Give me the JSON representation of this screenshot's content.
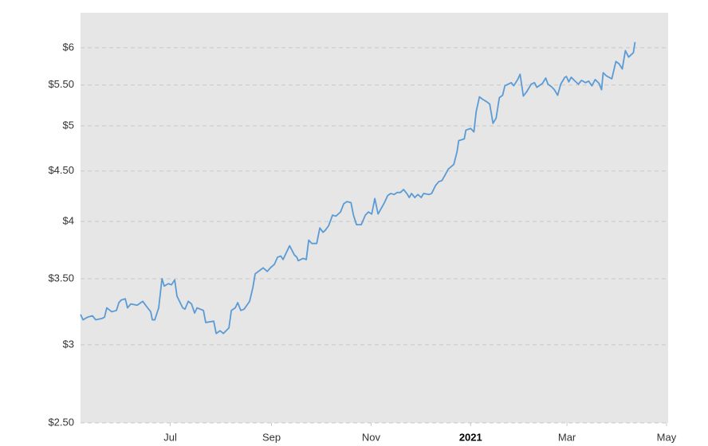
{
  "chart_data": {
    "type": "line",
    "ylog": true,
    "grid": true,
    "xlim": [
      0,
      360
    ],
    "ylim": [
      2.5,
      6.51
    ],
    "xticks": [
      {
        "value": 55,
        "label": "Jul"
      },
      {
        "value": 117,
        "label": "Sep"
      },
      {
        "value": 178,
        "label": "Nov"
      },
      {
        "value": 239,
        "label": "2021",
        "bold": true
      },
      {
        "value": 298,
        "label": "Mar"
      },
      {
        "value": 359,
        "label": "May"
      }
    ],
    "yticks": [
      {
        "value": 2.5,
        "label": "$2.50"
      },
      {
        "value": 3,
        "label": "$3"
      },
      {
        "value": 3.5,
        "label": "$3.50"
      },
      {
        "value": 4,
        "label": "$4"
      },
      {
        "value": 4.5,
        "label": "$4.50"
      },
      {
        "value": 5,
        "label": "$5"
      },
      {
        "value": 5.5,
        "label": "$5.50"
      },
      {
        "value": 6,
        "label": "$6"
      }
    ],
    "series": [
      {
        "color": "#5b9bd5",
        "x": [
          0,
          1.5,
          4.4,
          7.3,
          9.3,
          13.2,
          14.7,
          16.1,
          19.1,
          22,
          23.5,
          24.9,
          27.4,
          28.8,
          30.8,
          34.7,
          38.1,
          41.1,
          43,
          44,
          45.5,
          47.9,
          49.9,
          51.3,
          53.8,
          55.7,
          57.7,
          59.1,
          62.6,
          64,
          66,
          68,
          69.9,
          71.4,
          75.3,
          76.7,
          81.6,
          83.1,
          85.5,
          87.5,
          90.9,
          92.4,
          94.8,
          96.3,
          98.2,
          100.2,
          103.6,
          105.6,
          107,
          110,
          111.9,
          114.4,
          116.3,
          118.8,
          120.7,
          122.7,
          124.1,
          126.1,
          128.1,
          131,
          132.5,
          133.4,
          136.4,
          138.3,
          139.8,
          141.7,
          144.7,
          146.6,
          148.6,
          150,
          152,
          154.4,
          156.4,
          159.3,
          161.3,
          163.2,
          165.7,
          167.2,
          169.1,
          172,
          174.5,
          176.4,
          178.4,
          180.3,
          182.3,
          186.2,
          188.2,
          190.1,
          192.1,
          194,
          196,
          197.9,
          199.9,
          201.4,
          202.8,
          204.8,
          206.7,
          208.7,
          210.2,
          213.6,
          215.1,
          217.5,
          219.5,
          221.4,
          223.4,
          225.3,
          228.7,
          230.7,
          231.7,
          235.1,
          236.1,
          239,
          241,
          242.4,
          244.4,
          246.3,
          248.8,
          250.7,
          252.7,
          254.6,
          256.6,
          258.6,
          260,
          262,
          263.9,
          265.4,
          267.8,
          269.3,
          271.3,
          273.2,
          276.1,
          278.1,
          279.6,
          283,
          285,
          286.4,
          288.4,
          290.3,
          292.3,
          294.2,
          296.7,
          297.7,
          299.1,
          300.6,
          302.5,
          305,
          306.9,
          309.4,
          311.3,
          313.3,
          315.3,
          317.7,
          319.2,
          320.2,
          322.1,
          325.5,
          328,
          329.9,
          331.9,
          333.8,
          335.8,
          338.7,
          339.7
        ],
        "values": [
          3.22,
          3.18,
          3.2,
          3.21,
          3.18,
          3.19,
          3.2,
          3.27,
          3.24,
          3.25,
          3.31,
          3.33,
          3.34,
          3.27,
          3.3,
          3.29,
          3.32,
          3.27,
          3.24,
          3.18,
          3.18,
          3.27,
          3.5,
          3.44,
          3.46,
          3.45,
          3.49,
          3.36,
          3.27,
          3.26,
          3.32,
          3.3,
          3.23,
          3.27,
          3.25,
          3.16,
          3.17,
          3.08,
          3.1,
          3.08,
          3.12,
          3.25,
          3.27,
          3.31,
          3.25,
          3.26,
          3.32,
          3.43,
          3.54,
          3.57,
          3.59,
          3.56,
          3.59,
          3.62,
          3.68,
          3.69,
          3.66,
          3.72,
          3.78,
          3.7,
          3.68,
          3.65,
          3.67,
          3.66,
          3.83,
          3.8,
          3.8,
          3.94,
          3.9,
          3.92,
          3.96,
          4.06,
          4.05,
          4.09,
          4.17,
          4.19,
          4.18,
          4.06,
          3.97,
          3.97,
          4.06,
          4.09,
          4.07,
          4.22,
          4.07,
          4.18,
          4.25,
          4.27,
          4.26,
          4.28,
          4.28,
          4.31,
          4.27,
          4.23,
          4.27,
          4.23,
          4.26,
          4.23,
          4.27,
          4.26,
          4.27,
          4.35,
          4.39,
          4.4,
          4.46,
          4.52,
          4.57,
          4.71,
          4.83,
          4.85,
          4.95,
          4.97,
          4.93,
          5.17,
          5.35,
          5.32,
          5.29,
          5.26,
          5.03,
          5.09,
          5.34,
          5.37,
          5.49,
          5.51,
          5.53,
          5.49,
          5.57,
          5.64,
          5.36,
          5.41,
          5.51,
          5.53,
          5.47,
          5.52,
          5.59,
          5.51,
          5.48,
          5.44,
          5.37,
          5.51,
          5.6,
          5.61,
          5.54,
          5.6,
          5.56,
          5.51,
          5.56,
          5.53,
          5.55,
          5.49,
          5.57,
          5.52,
          5.44,
          5.66,
          5.62,
          5.58,
          5.81,
          5.78,
          5.71,
          5.96,
          5.87,
          5.93,
          6.08
        ]
      }
    ]
  }
}
